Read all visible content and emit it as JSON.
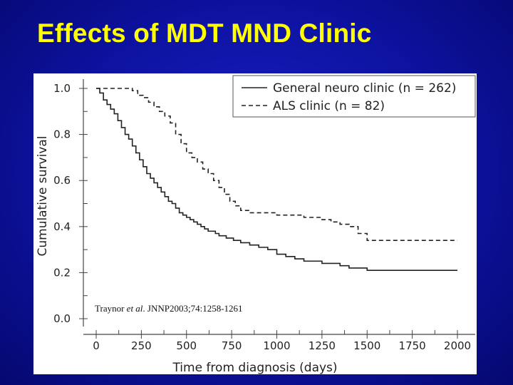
{
  "slide": {
    "title": "Effects of MDT MND Clinic"
  },
  "citation": {
    "pre": "Traynor ",
    "italic": "et al",
    "post": ". JNNP2003;74:1258-1261"
  },
  "chart_data": {
    "type": "line",
    "title": "",
    "xlabel": "Time from diagnosis (days)",
    "ylabel": "Cumulative survival",
    "xlim": [
      0,
      2000
    ],
    "ylim": [
      0,
      1.0
    ],
    "x_ticks": [
      0,
      250,
      500,
      750,
      1000,
      1250,
      1500,
      1750,
      2000
    ],
    "y_ticks": [
      0.0,
      0.2,
      0.4,
      0.6,
      0.8,
      1.0
    ],
    "y_tick_labels": [
      "0.0",
      "0.2",
      "0.4",
      "0.6",
      "0.8",
      "1.0"
    ],
    "grid": false,
    "legend_position": "top-right",
    "series": [
      {
        "name": "General neuro clinic (n = 262)",
        "line_style": "solid",
        "x": [
          0,
          20,
          40,
          60,
          80,
          100,
          120,
          140,
          160,
          180,
          200,
          220,
          240,
          260,
          280,
          300,
          320,
          340,
          360,
          380,
          400,
          420,
          440,
          460,
          480,
          500,
          520,
          540,
          560,
          580,
          600,
          620,
          640,
          660,
          680,
          700,
          720,
          740,
          760,
          780,
          800,
          850,
          900,
          950,
          1000,
          1050,
          1100,
          1150,
          1200,
          1250,
          1300,
          1350,
          1400,
          1450,
          1500,
          1600,
          1700,
          1800,
          1900,
          2000
        ],
        "y": [
          1.0,
          0.98,
          0.95,
          0.93,
          0.91,
          0.89,
          0.86,
          0.83,
          0.8,
          0.78,
          0.75,
          0.72,
          0.69,
          0.66,
          0.63,
          0.61,
          0.59,
          0.57,
          0.55,
          0.53,
          0.51,
          0.5,
          0.48,
          0.46,
          0.45,
          0.44,
          0.43,
          0.42,
          0.41,
          0.4,
          0.39,
          0.38,
          0.38,
          0.37,
          0.36,
          0.36,
          0.35,
          0.35,
          0.34,
          0.34,
          0.33,
          0.32,
          0.31,
          0.3,
          0.28,
          0.27,
          0.26,
          0.25,
          0.25,
          0.24,
          0.24,
          0.23,
          0.22,
          0.22,
          0.21,
          0.21,
          0.21,
          0.21,
          0.21,
          0.21
        ]
      },
      {
        "name": "ALS clinic (n = 82)",
        "line_style": "dashed",
        "x": [
          0,
          50,
          100,
          150,
          200,
          230,
          260,
          290,
          320,
          350,
          380,
          410,
          440,
          470,
          500,
          530,
          560,
          590,
          620,
          650,
          680,
          710,
          740,
          770,
          800,
          850,
          900,
          950,
          1000,
          1050,
          1100,
          1150,
          1200,
          1250,
          1300,
          1350,
          1400,
          1450,
          1500,
          1600,
          1700,
          1800,
          1900,
          2000
        ],
        "y": [
          1.0,
          1.0,
          1.0,
          1.0,
          0.99,
          0.97,
          0.96,
          0.94,
          0.92,
          0.9,
          0.88,
          0.85,
          0.8,
          0.76,
          0.72,
          0.7,
          0.68,
          0.65,
          0.63,
          0.6,
          0.57,
          0.54,
          0.51,
          0.49,
          0.47,
          0.46,
          0.46,
          0.46,
          0.45,
          0.45,
          0.45,
          0.44,
          0.44,
          0.43,
          0.42,
          0.41,
          0.4,
          0.37,
          0.34,
          0.34,
          0.34,
          0.34,
          0.34,
          0.34
        ]
      }
    ]
  }
}
